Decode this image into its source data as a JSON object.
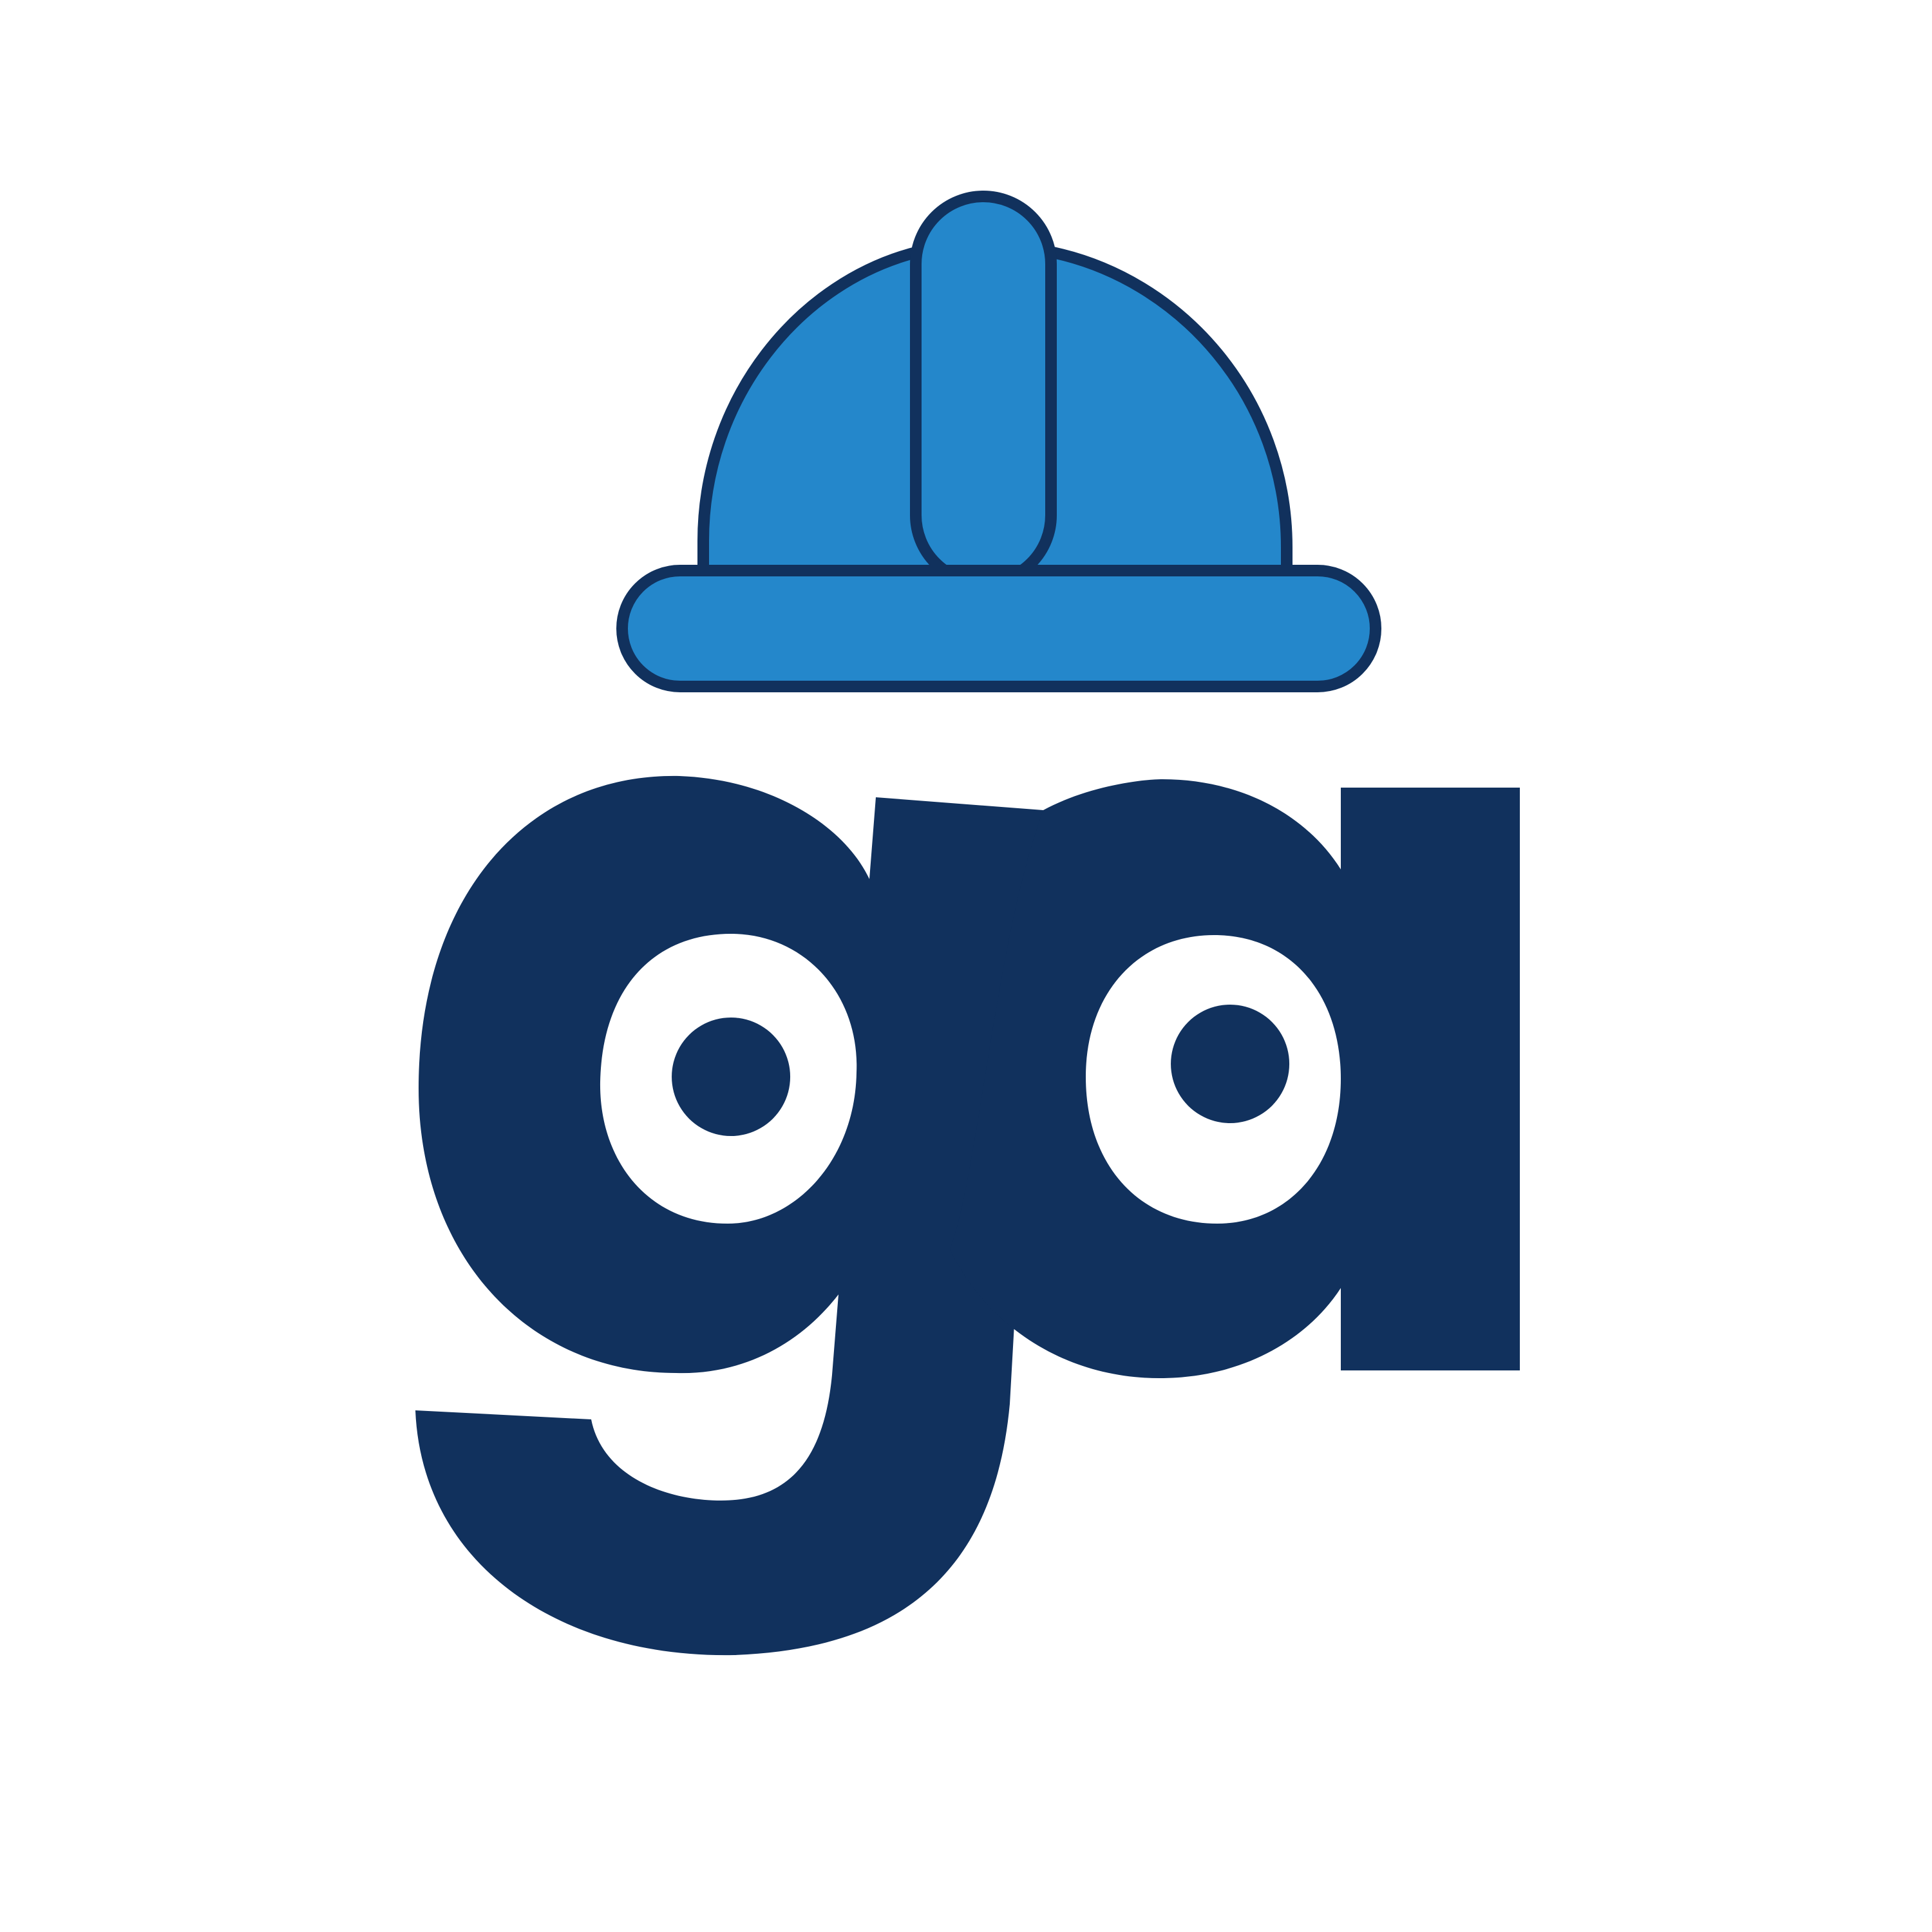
{
  "logo": {
    "wordmark": "ga",
    "colors": {
      "background": "#FFFFFF",
      "navy": "#11315D",
      "helmet_blue": "#2487CB"
    },
    "icons": [
      "hard-hat-icon"
    ]
  }
}
